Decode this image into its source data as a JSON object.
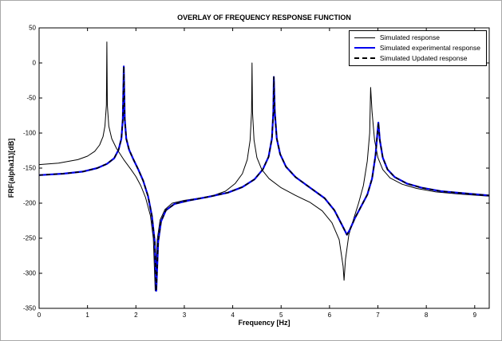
{
  "figure": {
    "title": "OVERLAY OF FREQUENCY RESPONSE FUNCTION",
    "xlabel": "Frequency [Hz]",
    "ylabel": "FRF(alpha11)[dB]"
  },
  "chart_data": {
    "type": "line",
    "title": "OVERLAY OF FREQUENCY RESPONSE FUNCTION",
    "xlabel": "Frequency [Hz]",
    "ylabel": "FRF(alpha11)[dB]",
    "xlim": [
      0,
      9.3
    ],
    "ylim": [
      -350,
      50
    ],
    "x_ticks": [
      0,
      1,
      2,
      3,
      4,
      5,
      6,
      7,
      8,
      9
    ],
    "y_ticks": [
      50,
      0,
      -50,
      -100,
      -150,
      -200,
      -250,
      -300,
      -350
    ],
    "grid": true,
    "legend_position": "top-right",
    "grid_color": "#c9c9c9",
    "series": [
      {
        "name": "Simulated response",
        "color": "#000000",
        "width": 1,
        "dash": null,
        "points": [
          [
            0,
            -145
          ],
          [
            0.4,
            -143
          ],
          [
            0.8,
            -138
          ],
          [
            1.0,
            -133
          ],
          [
            1.15,
            -126
          ],
          [
            1.25,
            -117
          ],
          [
            1.32,
            -105
          ],
          [
            1.36,
            -90
          ],
          [
            1.39,
            -60
          ],
          [
            1.4,
            30
          ],
          [
            1.41,
            -60
          ],
          [
            1.44,
            -90
          ],
          [
            1.5,
            -108
          ],
          [
            1.6,
            -122
          ],
          [
            1.75,
            -138
          ],
          [
            1.9,
            -152
          ],
          [
            2.0,
            -162
          ],
          [
            2.1,
            -175
          ],
          [
            2.2,
            -192
          ],
          [
            2.3,
            -218
          ],
          [
            2.36,
            -250
          ],
          [
            2.4,
            -325
          ],
          [
            2.44,
            -252
          ],
          [
            2.5,
            -224
          ],
          [
            2.6,
            -209
          ],
          [
            2.75,
            -200
          ],
          [
            3.0,
            -196
          ],
          [
            3.3,
            -193
          ],
          [
            3.6,
            -189
          ],
          [
            3.85,
            -183
          ],
          [
            4.05,
            -172
          ],
          [
            4.2,
            -158
          ],
          [
            4.3,
            -138
          ],
          [
            4.36,
            -110
          ],
          [
            4.39,
            -70
          ],
          [
            4.4,
            0
          ],
          [
            4.41,
            -70
          ],
          [
            4.44,
            -110
          ],
          [
            4.5,
            -135
          ],
          [
            4.6,
            -152
          ],
          [
            4.75,
            -165
          ],
          [
            5.0,
            -178
          ],
          [
            5.3,
            -189
          ],
          [
            5.6,
            -199
          ],
          [
            5.85,
            -211
          ],
          [
            6.05,
            -228
          ],
          [
            6.2,
            -252
          ],
          [
            6.28,
            -290
          ],
          [
            6.3,
            -310
          ],
          [
            6.33,
            -280
          ],
          [
            6.4,
            -245
          ],
          [
            6.5,
            -222
          ],
          [
            6.6,
            -200
          ],
          [
            6.7,
            -175
          ],
          [
            6.78,
            -140
          ],
          [
            6.83,
            -100
          ],
          [
            6.85,
            -35
          ],
          [
            6.88,
            -70
          ],
          [
            6.93,
            -110
          ],
          [
            7.0,
            -135
          ],
          [
            7.1,
            -152
          ],
          [
            7.25,
            -164
          ],
          [
            7.5,
            -173
          ],
          [
            7.8,
            -179
          ],
          [
            8.2,
            -184
          ],
          [
            8.7,
            -187
          ],
          [
            9.3,
            -190
          ]
        ]
      },
      {
        "name": "Simulated experimental response",
        "color": "#0000ee",
        "width": 2.2,
        "dash": null,
        "points": [
          [
            0,
            -160
          ],
          [
            0.5,
            -158
          ],
          [
            0.9,
            -155
          ],
          [
            1.2,
            -150
          ],
          [
            1.4,
            -144
          ],
          [
            1.55,
            -136
          ],
          [
            1.64,
            -124
          ],
          [
            1.7,
            -108
          ],
          [
            1.73,
            -80
          ],
          [
            1.75,
            -5
          ],
          [
            1.77,
            -80
          ],
          [
            1.8,
            -108
          ],
          [
            1.86,
            -124
          ],
          [
            1.95,
            -138
          ],
          [
            2.05,
            -152
          ],
          [
            2.15,
            -168
          ],
          [
            2.25,
            -190
          ],
          [
            2.33,
            -218
          ],
          [
            2.39,
            -255
          ],
          [
            2.42,
            -325
          ],
          [
            2.46,
            -255
          ],
          [
            2.52,
            -226
          ],
          [
            2.62,
            -210
          ],
          [
            2.8,
            -201
          ],
          [
            3.1,
            -196
          ],
          [
            3.5,
            -191
          ],
          [
            3.9,
            -185
          ],
          [
            4.2,
            -177
          ],
          [
            4.45,
            -166
          ],
          [
            4.62,
            -152
          ],
          [
            4.74,
            -134
          ],
          [
            4.81,
            -108
          ],
          [
            4.84,
            -70
          ],
          [
            4.85,
            -20
          ],
          [
            4.87,
            -70
          ],
          [
            4.91,
            -108
          ],
          [
            4.98,
            -130
          ],
          [
            5.1,
            -148
          ],
          [
            5.3,
            -163
          ],
          [
            5.6,
            -178
          ],
          [
            5.9,
            -193
          ],
          [
            6.1,
            -210
          ],
          [
            6.25,
            -230
          ],
          [
            6.36,
            -245
          ],
          [
            6.42,
            -238
          ],
          [
            6.52,
            -222
          ],
          [
            6.65,
            -205
          ],
          [
            6.78,
            -188
          ],
          [
            6.88,
            -165
          ],
          [
            6.95,
            -132
          ],
          [
            6.99,
            -100
          ],
          [
            7.01,
            -85
          ],
          [
            7.04,
            -110
          ],
          [
            7.1,
            -135
          ],
          [
            7.2,
            -152
          ],
          [
            7.35,
            -163
          ],
          [
            7.6,
            -172
          ],
          [
            7.9,
            -178
          ],
          [
            8.3,
            -183
          ],
          [
            8.8,
            -186
          ],
          [
            9.3,
            -189
          ]
        ]
      },
      {
        "name": "Simulated Updated response",
        "color": "#000000",
        "width": 1.6,
        "dash": [
          5,
          4
        ],
        "points_from": "Simulated experimental response"
      }
    ]
  }
}
